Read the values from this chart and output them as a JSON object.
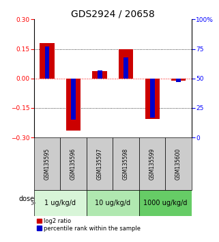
{
  "title": "GDS2924 / 20658",
  "samples": [
    "GSM135595",
    "GSM135596",
    "GSM135597",
    "GSM135598",
    "GSM135599",
    "GSM135600"
  ],
  "log2_ratio": [
    0.18,
    -0.265,
    0.038,
    0.15,
    -0.205,
    -0.012
  ],
  "percentile_rank": [
    77,
    15,
    57,
    68,
    17,
    47
  ],
  "dose_groups": [
    {
      "label": "1 ug/kg/d",
      "start": 0,
      "end": 2,
      "color": "#d8f5d8"
    },
    {
      "label": "10 ug/kg/d",
      "start": 2,
      "end": 4,
      "color": "#b0e8b0"
    },
    {
      "label": "1000 ug/kg/d",
      "start": 4,
      "end": 6,
      "color": "#66cc66"
    }
  ],
  "dose_label": "dose",
  "ylim_left": [
    -0.3,
    0.3
  ],
  "ylim_right": [
    0,
    100
  ],
  "yticks_left": [
    -0.3,
    -0.15,
    0,
    0.15,
    0.3
  ],
  "yticks_right": [
    0,
    25,
    50,
    75,
    100
  ],
  "red_color": "#cc0000",
  "blue_color": "#0000cc",
  "red_bar_width": 0.55,
  "blue_bar_width": 0.18,
  "grid_color": "black",
  "zero_line_color": "red",
  "sample_box_color": "#cccccc",
  "legend_red_label": "log2 ratio",
  "legend_blue_label": "percentile rank within the sample",
  "title_fontsize": 10,
  "tick_fontsize": 6.5,
  "sample_fontsize": 5.5,
  "dose_fontsize": 7,
  "legend_fontsize": 6
}
